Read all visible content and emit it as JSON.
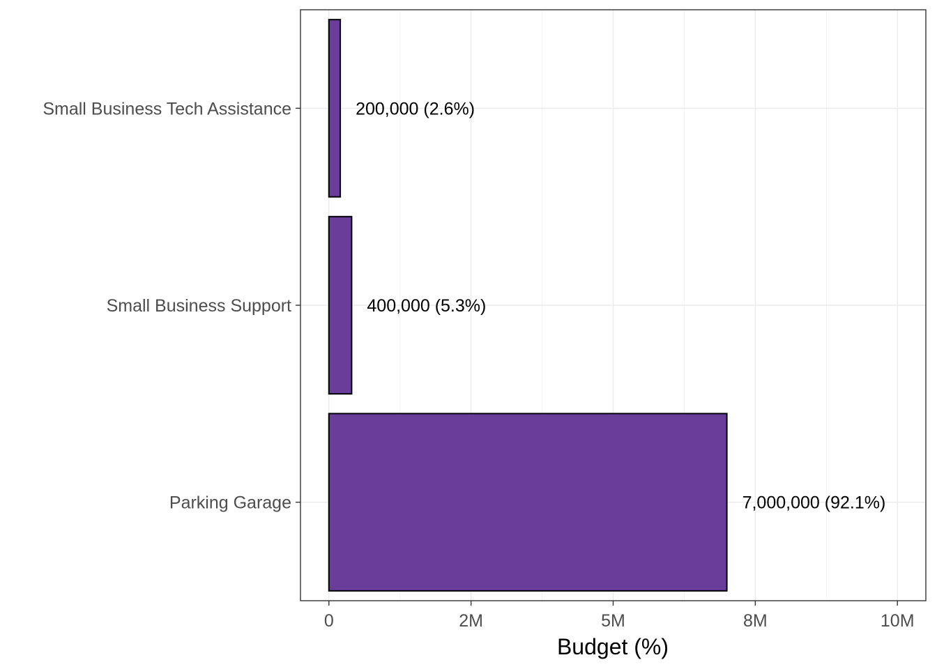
{
  "chart_data": {
    "type": "bar",
    "orientation": "horizontal",
    "categories": [
      "Small Business Tech Assistance",
      "Small Business Support",
      "Parking Garage"
    ],
    "values": [
      200000,
      400000,
      7000000
    ],
    "data_labels": [
      "200,000 (2.6%)",
      "400,000 (5.3%)",
      "7,000,000 (92.1%)"
    ],
    "xlabel": "Budget (%)",
    "ylabel": "",
    "title": "",
    "xlim": [
      -500000,
      10500000
    ],
    "x_ticks": [
      0,
      2500000,
      5000000,
      7500000,
      10000000
    ],
    "x_tick_labels": [
      "0",
      "2M",
      "5M",
      "8M",
      "10M"
    ],
    "grid": true,
    "bar_color": "#6a3d9a",
    "bar_outline": "#000000"
  }
}
